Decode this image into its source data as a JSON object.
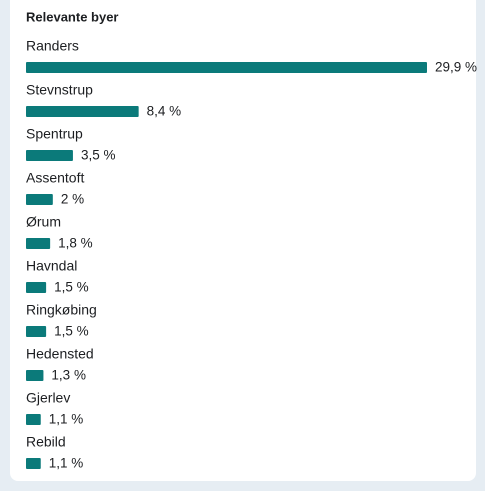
{
  "chart_data": {
    "type": "bar",
    "orientation": "horizontal",
    "title": "Relevante byer",
    "categories": [
      "Randers",
      "Stevnstrup",
      "Spentrup",
      "Assentoft",
      "Ørum",
      "Havndal",
      "Ringkøbing",
      "Hedensted",
      "Gjerlev",
      "Rebild"
    ],
    "values": [
      29.9,
      8.4,
      3.5,
      2,
      1.8,
      1.5,
      1.5,
      1.3,
      1.1,
      1.1
    ],
    "value_labels": [
      "29,9 %",
      "8,4 %",
      "3,5 %",
      "2 %",
      "1,8 %",
      "1,5 %",
      "1,5 %",
      "1,3 %",
      "1,1 %",
      "1,1 %"
    ],
    "color": "#0b7a7a"
  }
}
